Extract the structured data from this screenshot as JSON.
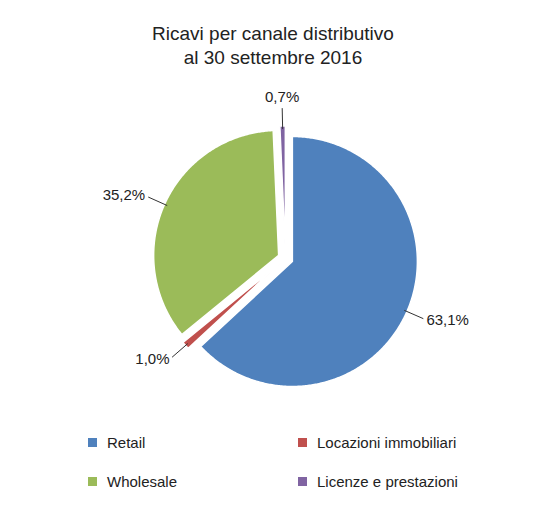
{
  "chart_data": {
    "type": "pie",
    "title": "Ricavi per canale distributivo",
    "subtitle": "al 30 settembre 2016",
    "categories": [
      "Retail",
      "Locazioni immobiliari",
      "Wholesale",
      "Licenze e prestazioni"
    ],
    "values": [
      63.1,
      1.0,
      35.2,
      0.7
    ],
    "value_labels": [
      "63,1%",
      "1,0%",
      "35,2%",
      "0,7%"
    ],
    "colors": [
      "#4f81bd",
      "#c0504d",
      "#9bbb59",
      "#8064a2"
    ],
    "data_labels": true,
    "legend": "bottom"
  }
}
